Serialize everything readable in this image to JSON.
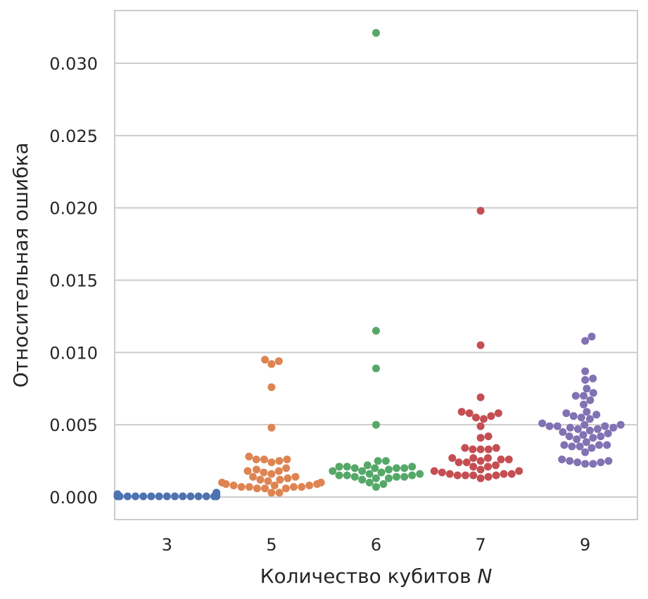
{
  "chart_data": {
    "type": "scatter",
    "style": "swarm",
    "xlabel": "Количество кубитов",
    "xlabel_var": "N",
    "ylabel": "Относительная ошибка",
    "categories": [
      "3",
      "5",
      "6",
      "7",
      "9"
    ],
    "yticks": [
      "0.000",
      "0.005",
      "0.010",
      "0.015",
      "0.020",
      "0.025",
      "0.030"
    ],
    "ylim": [
      -0.0016,
      0.0337
    ],
    "grid": "horizontal",
    "colors": [
      "#4c72b0",
      "#dd8452",
      "#55a868",
      "#c44e52",
      "#8172b3"
    ],
    "series": [
      {
        "category": "3",
        "values": [
          0.0001,
          0.0002,
          0.0001,
          5e-05,
          5e-05,
          5e-05,
          5e-05,
          5e-05,
          5e-05,
          5e-05,
          5e-05,
          5e-05,
          5e-05,
          5e-05,
          5e-05,
          5e-05,
          5e-05,
          5e-05,
          0.0001,
          0.0002,
          0.0003
        ]
      },
      {
        "category": "5",
        "values": [
          0.0095,
          0.0094,
          0.0092,
          0.0076,
          0.0048,
          0.0028,
          0.0026,
          0.0026,
          0.0025,
          0.0024,
          0.0026,
          0.002,
          0.0019,
          0.0018,
          0.0018,
          0.0017,
          0.0016,
          0.0014,
          0.0014,
          0.0013,
          0.0012,
          0.0012,
          0.0011,
          0.001,
          0.001,
          0.0009,
          0.0009,
          0.0008,
          0.0008,
          0.0008,
          0.0007,
          0.0007,
          0.0007,
          0.0007,
          0.0006,
          0.0006,
          0.0006,
          0.0003,
          0.0003
        ]
      },
      {
        "category": "6",
        "values": [
          0.0321,
          0.0115,
          0.0089,
          0.005,
          0.0025,
          0.0025,
          0.0022,
          0.0021,
          0.0021,
          0.0021,
          0.002,
          0.002,
          0.002,
          0.002,
          0.0019,
          0.0018,
          0.0018,
          0.0017,
          0.0016,
          0.0016,
          0.0015,
          0.0015,
          0.0015,
          0.0014,
          0.0014,
          0.0014,
          0.0013,
          0.0013,
          0.0012,
          0.001,
          0.0009,
          0.0007
        ]
      },
      {
        "category": "7",
        "values": [
          0.0198,
          0.0105,
          0.0069,
          0.0059,
          0.0058,
          0.0058,
          0.0056,
          0.0055,
          0.0054,
          0.0049,
          0.0042,
          0.0041,
          0.0034,
          0.0034,
          0.0033,
          0.0033,
          0.0033,
          0.0027,
          0.0027,
          0.0027,
          0.0026,
          0.0026,
          0.0025,
          0.0024,
          0.0024,
          0.0022,
          0.0021,
          0.0021,
          0.0019,
          0.0018,
          0.0018,
          0.0017,
          0.0016,
          0.0016,
          0.0016,
          0.0015,
          0.0015,
          0.0015,
          0.0015,
          0.0014,
          0.0013
        ]
      },
      {
        "category": "9",
        "values": [
          0.0111,
          0.0108,
          0.0087,
          0.0082,
          0.0081,
          0.0075,
          0.0072,
          0.007,
          0.007,
          0.0067,
          0.0064,
          0.0059,
          0.0058,
          0.0057,
          0.0056,
          0.0055,
          0.0054,
          0.0051,
          0.005,
          0.005,
          0.0049,
          0.0049,
          0.0049,
          0.0048,
          0.0048,
          0.0047,
          0.0047,
          0.0046,
          0.0045,
          0.0044,
          0.0043,
          0.0042,
          0.0042,
          0.0041,
          0.004,
          0.0038,
          0.0036,
          0.0036,
          0.0036,
          0.0035,
          0.0035,
          0.0034,
          0.0031,
          0.0026,
          0.0025,
          0.0025,
          0.0024,
          0.0024,
          0.0023,
          0.0023
        ]
      }
    ]
  }
}
